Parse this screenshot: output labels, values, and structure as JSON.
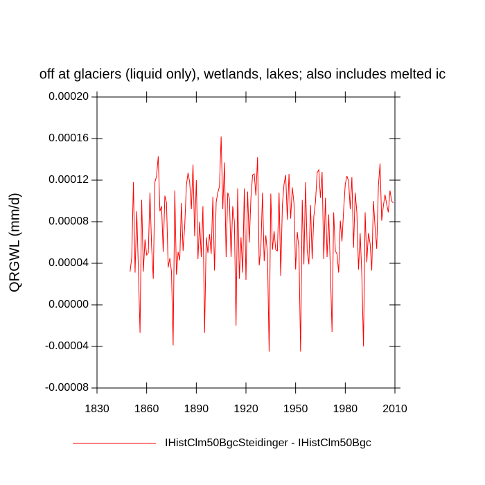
{
  "chart_data": {
    "type": "line",
    "title": "off at glaciers (liquid only), wetlands, lakes; also includes melted ic",
    "y_label": "QRGWL  (mm/d)",
    "x": [
      1850,
      1851,
      1852,
      1853,
      1854,
      1855,
      1856,
      1857,
      1858,
      1859,
      1860,
      1861,
      1862,
      1863,
      1864,
      1865,
      1866,
      1867,
      1868,
      1869,
      1870,
      1871,
      1872,
      1873,
      1874,
      1875,
      1876,
      1877,
      1878,
      1879,
      1880,
      1881,
      1882,
      1883,
      1884,
      1885,
      1886,
      1887,
      1888,
      1889,
      1890,
      1891,
      1892,
      1893,
      1894,
      1895,
      1896,
      1897,
      1898,
      1899,
      1900,
      1901,
      1902,
      1903,
      1904,
      1905,
      1906,
      1907,
      1908,
      1909,
      1910,
      1911,
      1912,
      1913,
      1914,
      1915,
      1916,
      1917,
      1918,
      1919,
      1920,
      1921,
      1922,
      1923,
      1924,
      1925,
      1926,
      1927,
      1928,
      1929,
      1930,
      1931,
      1932,
      1933,
      1934,
      1935,
      1936,
      1937,
      1938,
      1939,
      1940,
      1941,
      1942,
      1943,
      1944,
      1945,
      1946,
      1947,
      1948,
      1949,
      1950,
      1951,
      1952,
      1953,
      1954,
      1955,
      1956,
      1957,
      1958,
      1959,
      1960,
      1961,
      1962,
      1963,
      1964,
      1965,
      1966,
      1967,
      1968,
      1969,
      1970,
      1971,
      1972,
      1973,
      1974,
      1975,
      1976,
      1977,
      1978,
      1979,
      1980,
      1981,
      1982,
      1983,
      1984,
      1985,
      1986,
      1987,
      1988,
      1989,
      1990,
      1991,
      1992,
      1993,
      1994,
      1995,
      1996,
      1997,
      1998,
      1999,
      2000,
      2001,
      2002,
      2003,
      2004,
      2005,
      2006,
      2007,
      2008,
      2009
    ],
    "series": [
      {
        "name": "IHistClm50BgcSteidinger - IHistClm50Bgc",
        "color": "#ff0000",
        "values": [
          3.2e-05,
          4.6e-05,
          0.000118,
          3.1e-05,
          9e-05,
          3.5e-05,
          -2.7e-05,
          0.000101,
          3.2e-05,
          6.3e-05,
          4.8e-05,
          5e-05,
          0.000108,
          5.6e-05,
          2.5e-05,
          0.000118,
          0.000124,
          0.000143,
          9e-05,
          9.5e-05,
          5.1e-05,
          0.000105,
          9.8e-05,
          3.6e-05,
          4.5e-05,
          3.2e-05,
          -3.9e-05,
          0.00011,
          2.9e-05,
          5.1e-05,
          4.3e-05,
          9.8e-05,
          5.2e-05,
          7.6e-05,
          0.000115,
          0.000127,
          0.000118,
          9.2e-05,
          0.000135,
          6.6e-05,
          0.00012,
          4.4e-05,
          8e-05,
          4.6e-05,
          9.5e-05,
          -2.7e-05,
          6.5e-05,
          5e-05,
          6.8e-05,
          4.9e-05,
          0.000104,
          3.3e-05,
          9.9e-05,
          0.000108,
          0.000114,
          0.000162,
          9.2e-05,
          0.000137,
          4.6e-05,
          0.000108,
          0.000102,
          4.6e-05,
          9.5e-05,
          8e-05,
          -2e-05,
          0.000112,
          2.5e-05,
          6.5e-05,
          3.1e-05,
          0.000112,
          2.4e-05,
          0.000109,
          6e-05,
          0.000103,
          0.000125,
          0.000126,
          0.000105,
          0.000142,
          3.8e-05,
          5.5e-05,
          0.000108,
          4.2e-05,
          6.7e-05,
          4.9e-05,
          -4.5e-05,
          0.000107,
          5.3e-05,
          7.1e-05,
          5.3e-05,
          5.2e-05,
          0.000108,
          2.8e-05,
          9.6e-05,
          0.000116,
          0.000125,
          8.2e-05,
          0.000126,
          8.3e-05,
          0.000113,
          9.8e-05,
          3.4e-05,
          7e-05,
          5.4e-05,
          -4.5e-05,
          0.000101,
          3.9e-05,
          0.000118,
          5.2e-05,
          3.9e-05,
          9.6e-05,
          4.4e-05,
          8.5e-05,
          9.9e-05,
          0.000127,
          0.00013,
          0.000103,
          0.000128,
          4.4e-05,
          0.000103,
          4.6e-05,
          8.7e-05,
          3.4e-05,
          -2.6e-05,
          8.9e-05,
          5.2e-05,
          4.9e-05,
          3.1e-05,
          8.1e-05,
          6.1e-05,
          9.1e-05,
          0.000116,
          0.000124,
          0.000119,
          9.2e-05,
          0.000123,
          5.5e-05,
          0.000108,
          8.9e-05,
          3.4e-05,
          6.9e-05,
          2.9e-05,
          -4e-05,
          8.9e-05,
          4.1e-05,
          6.9e-05,
          5.9e-05,
          3.3e-05,
          0.0001,
          7.5e-05,
          5.4e-05,
          0.000114,
          0.000136,
          8.1e-05,
          9.5e-05,
          0.000106,
          9.7e-05,
          8.9e-05,
          0.00011,
          0.0001,
          9.8e-05
        ]
      }
    ],
    "xlim": [
      1830,
      2010
    ],
    "xticks": [
      1830,
      1860,
      1890,
      1920,
      1950,
      1980,
      2010
    ],
    "ylim": [
      -8e-05,
      0.0002
    ],
    "yticks": [
      {
        "value": -8e-05,
        "label": "-0.00008"
      },
      {
        "value": -4e-05,
        "label": "-0.00004"
      },
      {
        "value": 0,
        "label": "0.00000"
      },
      {
        "value": 4e-05,
        "label": "0.00004"
      },
      {
        "value": 8e-05,
        "label": "0.00008"
      },
      {
        "value": 0.00012,
        "label": "0.00012"
      },
      {
        "value": 0.00016,
        "label": "0.00016"
      },
      {
        "value": 0.0002,
        "label": "0.00020"
      }
    ],
    "legend": "bottom"
  }
}
